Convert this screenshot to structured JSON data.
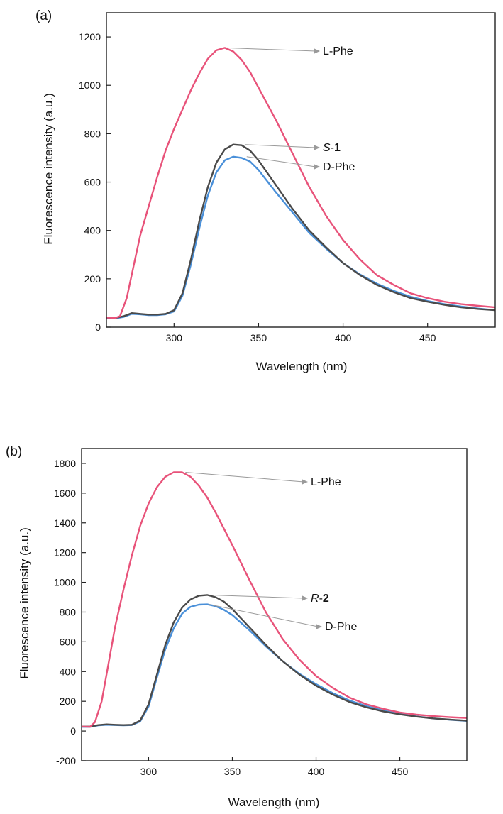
{
  "colors": {
    "L-Phe": "#e8537a",
    "S-1": "#4a4a4a",
    "R-2": "#4a4a4a",
    "D-Phe": "#4a90d9"
  },
  "chart_data": [
    {
      "type": "line",
      "panel_label": "(a)",
      "xlabel": "Wavelength (nm)",
      "ylabel": "Fluorescence intensity (a.u.)",
      "xlim": [
        260,
        490
      ],
      "ylim": [
        0,
        1300
      ],
      "xticks": [
        300,
        350,
        400,
        450
      ],
      "yticks": [
        0,
        200,
        400,
        600,
        800,
        1000,
        1200
      ],
      "grid": false,
      "series": [
        {
          "name": "L-Phe",
          "color_key": "L-Phe",
          "x": [
            260,
            265,
            268,
            272,
            276,
            280,
            285,
            290,
            295,
            300,
            305,
            310,
            315,
            320,
            325,
            330,
            335,
            340,
            345,
            350,
            360,
            370,
            380,
            390,
            400,
            410,
            420,
            430,
            440,
            450,
            460,
            470,
            480,
            490
          ],
          "y": [
            40,
            38,
            45,
            120,
            250,
            380,
            500,
            620,
            730,
            820,
            900,
            980,
            1050,
            1110,
            1145,
            1155,
            1140,
            1105,
            1055,
            990,
            860,
            720,
            580,
            460,
            360,
            280,
            215,
            175,
            140,
            120,
            105,
            95,
            88,
            82
          ]
        },
        {
          "name": "S-1",
          "color_key": "S-1",
          "x": [
            260,
            265,
            270,
            275,
            280,
            285,
            290,
            295,
            300,
            305,
            310,
            315,
            320,
            325,
            330,
            335,
            340,
            345,
            350,
            355,
            360,
            370,
            380,
            390,
            400,
            410,
            420,
            430,
            440,
            450,
            460,
            470,
            480,
            490
          ],
          "y": [
            40,
            38,
            45,
            58,
            55,
            52,
            52,
            55,
            70,
            140,
            280,
            440,
            580,
            680,
            735,
            755,
            752,
            730,
            690,
            640,
            590,
            490,
            400,
            330,
            265,
            215,
            175,
            145,
            120,
            105,
            92,
            82,
            75,
            70
          ]
        },
        {
          "name": "D-Phe",
          "color_key": "D-Phe",
          "x": [
            260,
            265,
            270,
            275,
            280,
            285,
            290,
            295,
            300,
            305,
            310,
            315,
            320,
            325,
            330,
            335,
            340,
            345,
            350,
            355,
            360,
            370,
            380,
            390,
            400,
            410,
            420,
            430,
            440,
            450,
            460,
            470,
            480,
            490
          ],
          "y": [
            38,
            36,
            42,
            55,
            53,
            50,
            50,
            53,
            65,
            130,
            260,
            410,
            545,
            640,
            690,
            705,
            700,
            685,
            650,
            605,
            560,
            475,
            390,
            325,
            265,
            218,
            180,
            150,
            126,
            108,
            95,
            85,
            77,
            70
          ]
        }
      ],
      "annotations": [
        {
          "label": "L-Phe",
          "series": "L-Phe",
          "x": 331,
          "y": 1155
        },
        {
          "label_italic": "S",
          "label_bold": "1",
          "series": "S-1",
          "x": 342,
          "y": 755
        },
        {
          "label": "D-Phe",
          "series": "D-Phe",
          "x": 343,
          "y": 705
        }
      ]
    },
    {
      "type": "line",
      "panel_label": "(b)",
      "xlabel": "Wavelength (nm)",
      "ylabel": "Fluorescence intensity (a.u.)",
      "xlim": [
        260,
        490
      ],
      "ylim": [
        -200,
        1900
      ],
      "xticks": [
        300,
        350,
        400,
        450
      ],
      "yticks": [
        -200,
        0,
        200,
        400,
        600,
        800,
        1000,
        1200,
        1400,
        1600,
        1800
      ],
      "grid": false,
      "series": [
        {
          "name": "L-Phe",
          "color_key": "L-Phe",
          "x": [
            260,
            265,
            268,
            272,
            276,
            280,
            285,
            290,
            295,
            300,
            305,
            310,
            315,
            320,
            325,
            330,
            335,
            340,
            350,
            360,
            370,
            380,
            390,
            400,
            410,
            420,
            430,
            440,
            450,
            460,
            470,
            480,
            490
          ],
          "y": [
            30,
            28,
            60,
            200,
            450,
            700,
            950,
            1180,
            1380,
            1530,
            1640,
            1710,
            1740,
            1740,
            1710,
            1650,
            1570,
            1470,
            1250,
            1020,
            800,
            620,
            480,
            370,
            290,
            225,
            180,
            150,
            125,
            110,
            100,
            93,
            88
          ]
        },
        {
          "name": "R-2",
          "color_key": "R-2",
          "x": [
            260,
            265,
            270,
            275,
            280,
            285,
            290,
            295,
            300,
            305,
            310,
            315,
            320,
            325,
            330,
            335,
            340,
            345,
            350,
            360,
            370,
            380,
            390,
            400,
            410,
            420,
            430,
            440,
            450,
            460,
            470,
            480,
            490
          ],
          "y": [
            30,
            30,
            40,
            45,
            42,
            40,
            42,
            70,
            180,
            380,
            580,
            730,
            830,
            885,
            910,
            915,
            900,
            870,
            820,
            700,
            580,
            470,
            380,
            305,
            245,
            195,
            160,
            132,
            112,
            97,
            85,
            77,
            70
          ]
        },
        {
          "name": "D-Phe",
          "color_key": "D-Phe",
          "x": [
            260,
            265,
            270,
            275,
            280,
            285,
            290,
            295,
            300,
            305,
            310,
            315,
            320,
            325,
            330,
            335,
            340,
            345,
            350,
            360,
            370,
            380,
            390,
            400,
            410,
            420,
            430,
            440,
            450,
            460,
            470,
            480,
            490
          ],
          "y": [
            28,
            28,
            38,
            42,
            40,
            38,
            40,
            65,
            165,
            360,
            550,
            690,
            790,
            835,
            850,
            852,
            840,
            815,
            780,
            680,
            570,
            470,
            385,
            315,
            255,
            205,
            168,
            138,
            115,
            98,
            85,
            76,
            68
          ]
        }
      ],
      "annotations": [
        {
          "label": "L-Phe",
          "series": "L-Phe",
          "x": 322,
          "y": 1740
        },
        {
          "label_italic": "R",
          "label_bold": "2",
          "series": "R-2",
          "x": 336,
          "y": 915
        },
        {
          "label": "D-Phe",
          "series": "D-Phe",
          "x": 336,
          "y": 852
        }
      ]
    }
  ]
}
